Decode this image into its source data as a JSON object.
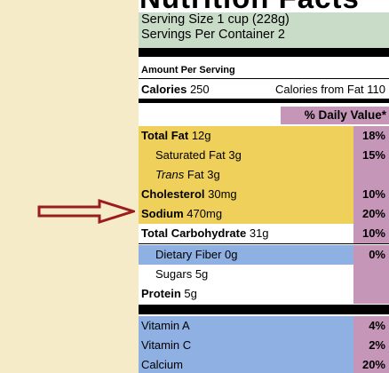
{
  "label": {
    "title": "Nutrition Facts",
    "serving_size": "Serving Size 1 cup (228g)",
    "servings_per_container": "Servings Per Container  2",
    "amount_per_serving": "Amount Per Serving",
    "calories_label": "Calories",
    "calories_value": "250",
    "calories_from_fat": "Calories from Fat 110",
    "daily_value_header": "% Daily Value*",
    "rows": [
      {
        "name": "Total Fat",
        "amount": "12g",
        "pct": "18%"
      },
      {
        "name": "Saturated Fat",
        "amount": "3g",
        "pct": "15%"
      },
      {
        "name": "Trans",
        "amount": "Fat 3g",
        "pct": ""
      },
      {
        "name": "Cholesterol",
        "amount": "30mg",
        "pct": "10%"
      },
      {
        "name": "Sodium",
        "amount": "470mg",
        "pct": "20%"
      },
      {
        "name": "Total Carbohydrate",
        "amount": "31g",
        "pct": "10%"
      },
      {
        "name": "Dietary Fiber",
        "amount": "0g",
        "pct": "0%"
      },
      {
        "name": "Sugars",
        "amount": "5g",
        "pct": ""
      },
      {
        "name": "Protein",
        "amount": "5g",
        "pct": ""
      },
      {
        "name": "Vitamin A",
        "amount": "",
        "pct": "4%"
      },
      {
        "name": "Vitamin C",
        "amount": "",
        "pct": "2%"
      },
      {
        "name": "Calcium",
        "amount": "",
        "pct": "20%"
      }
    ]
  },
  "colors": {
    "background": "#f5ebc8",
    "serving_band": "#c9dcc8",
    "fat_band": "#efd05a",
    "carb_band": "#8eb0e2",
    "daily_value_column": "#c596b8",
    "arrow": "#9b1c1c"
  },
  "annotation": {
    "arrow_points_to": "Sodium"
  }
}
